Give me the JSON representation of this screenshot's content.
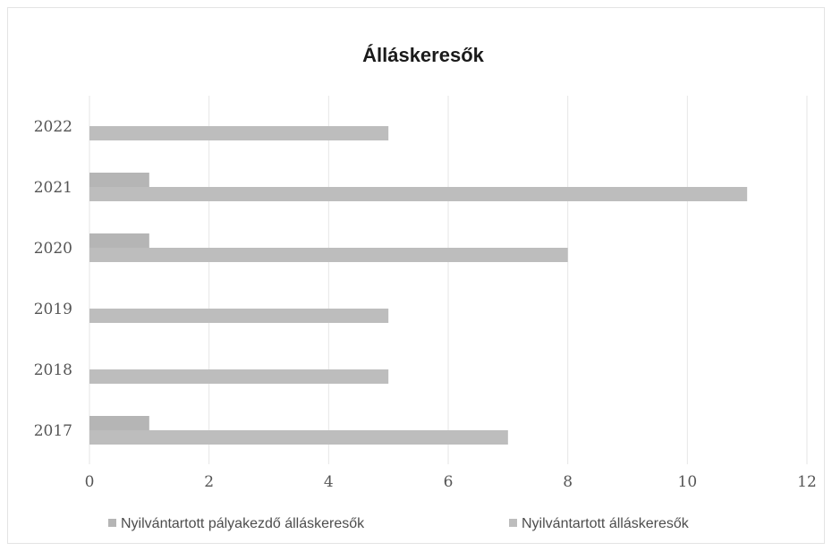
{
  "chart_data": {
    "type": "bar",
    "orientation": "horizontal",
    "title": "Álláskeresők",
    "categories": [
      "2017",
      "2018",
      "2019",
      "2020",
      "2021",
      "2022"
    ],
    "series": [
      {
        "name": "Nyilvántartott pályakezdő álláskeresők",
        "values": [
          1,
          0,
          0,
          1,
          1,
          0
        ],
        "color": "#b5b5b5"
      },
      {
        "name": "Nyilvántartott álláskeresők",
        "values": [
          7,
          5,
          5,
          8,
          11,
          5
        ],
        "color": "#bdbdbd"
      }
    ],
    "xlim": [
      0,
      12
    ],
    "xticks": [
      "0",
      "2",
      "4",
      "6",
      "8",
      "10",
      "12"
    ],
    "grid": "vertical",
    "legend_position": "bottom"
  }
}
